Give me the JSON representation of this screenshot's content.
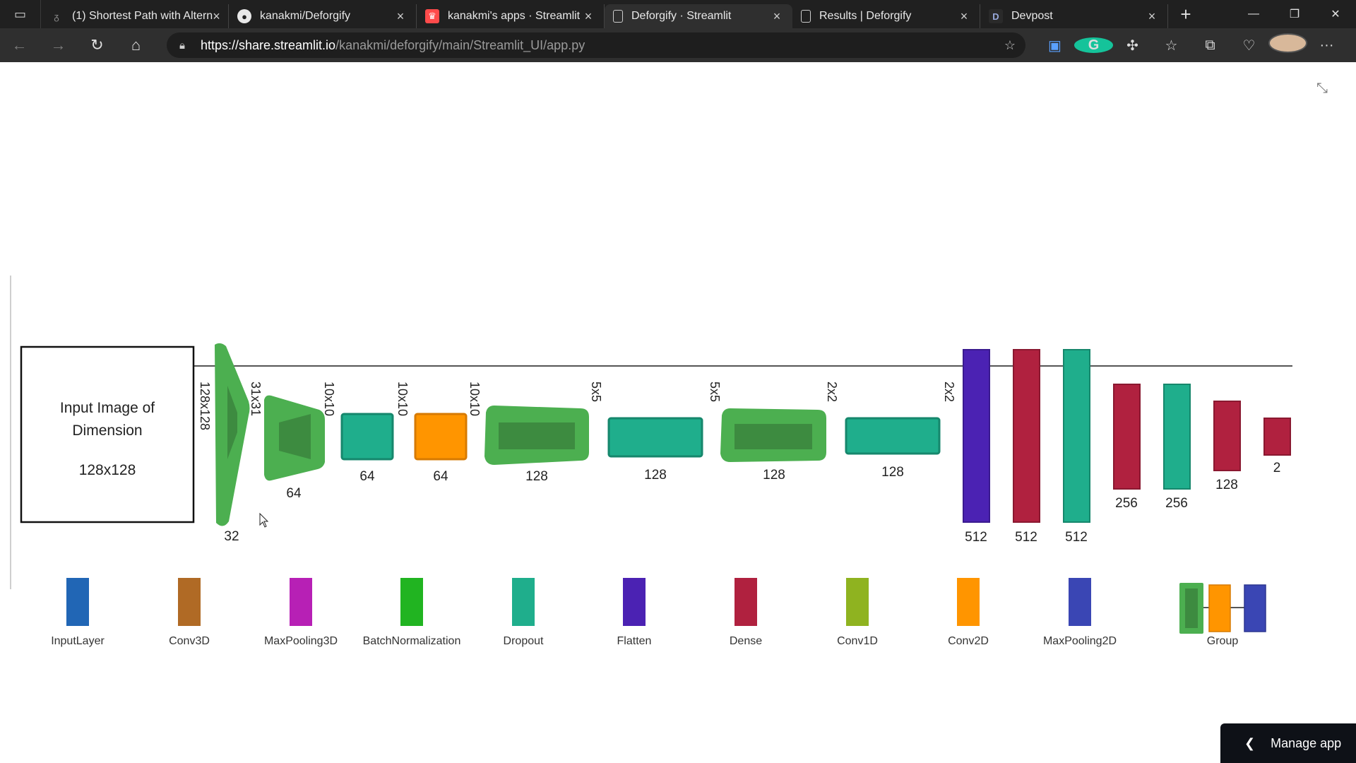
{
  "browser": {
    "tabs": [
      {
        "title": "(1) Shortest Path with Altern",
        "icon": "dark-logo-icon"
      },
      {
        "title": "kanakmi/Deforgify",
        "icon": "github-icon"
      },
      {
        "title": "kanakmi's apps · Streamlit",
        "icon": "streamlit-icon"
      },
      {
        "title": "Deforgify · Streamlit",
        "icon": "page-icon",
        "active": true
      },
      {
        "title": "Results | Deforgify",
        "icon": "page-icon"
      },
      {
        "title": "Devpost",
        "icon": "devpost-icon"
      }
    ],
    "url_host": "https://share.streamlit.io",
    "url_path": "/kanakmi/deforgify/main/Streamlit_UI/app.py"
  },
  "diagram": {
    "input_box": {
      "line1": "Input Image of",
      "line2": "Dimension",
      "line3": "128x128"
    },
    "dims": {
      "d1": "128x128",
      "d2": "31x31",
      "d3": "10x10",
      "d4": "10x10",
      "d5": "10x10",
      "d6": "5x5",
      "d7": "5x5",
      "d8": "2x2",
      "d9": "2x2"
    },
    "sizes": {
      "s1": "32",
      "s2": "64",
      "s3": "64",
      "s4": "64",
      "s5": "128",
      "s6": "128",
      "s7": "128",
      "s8": "128",
      "s9": "512",
      "s10": "512",
      "s11": "512",
      "s12": "256",
      "s13": "256",
      "s14": "128",
      "s15": "2"
    },
    "legend": [
      {
        "label": "InputLayer",
        "color": "#2166b5"
      },
      {
        "label": "Conv3D",
        "color": "#b06a25"
      },
      {
        "label": "MaxPooling3D",
        "color": "#b720b5"
      },
      {
        "label": "BatchNormalization",
        "color": "#21b421"
      },
      {
        "label": "Dropout",
        "color": "#1fae8c"
      },
      {
        "label": "Flatten",
        "color": "#4b22b3"
      },
      {
        "label": "Dense",
        "color": "#b0213f"
      },
      {
        "label": "Conv1D",
        "color": "#8fb320"
      },
      {
        "label": "Conv2D",
        "color": "#ff9500"
      },
      {
        "label": "MaxPooling2D",
        "color": "#3a46b4"
      },
      {
        "label": "Group",
        "color": "#4caf50"
      }
    ]
  },
  "manage_app": {
    "label": "Manage app"
  }
}
